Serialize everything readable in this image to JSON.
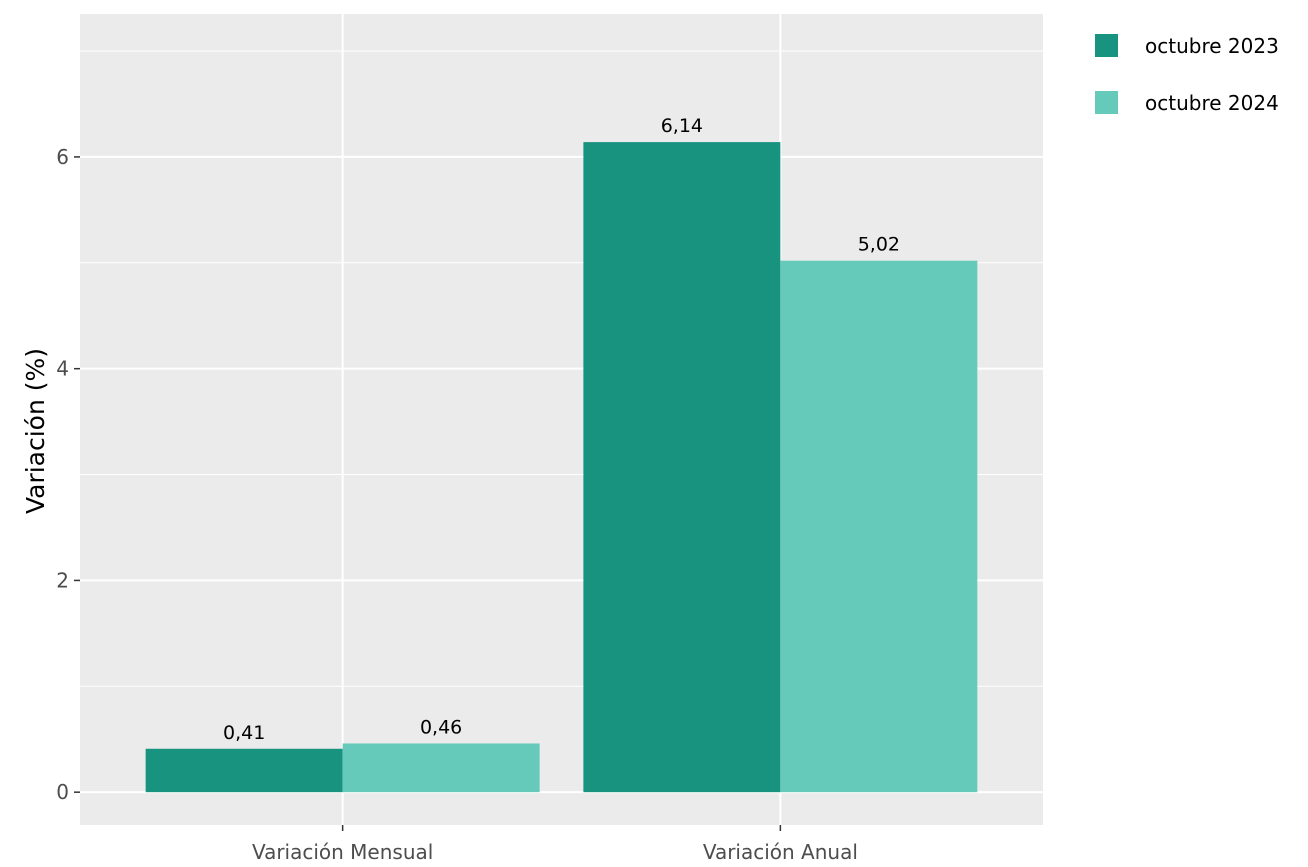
{
  "chart_data": {
    "type": "bar",
    "title": "",
    "xlabel": "",
    "ylabel": "Variación (%)",
    "categories": [
      "Variación Mensual",
      "Variación Anual"
    ],
    "series": [
      {
        "name": "octubre 2023",
        "values": [
          0.41,
          6.14
        ],
        "labels": [
          "0,41",
          "6,14"
        ],
        "color": "#17937f"
      },
      {
        "name": "octubre 2024",
        "values": [
          0.46,
          5.02
        ],
        "labels": [
          "0,46",
          "5,02"
        ],
        "color": "#66cabb"
      }
    ],
    "yticks": [
      0,
      2,
      4,
      6
    ],
    "ylim": [
      -0.31,
      7.35
    ],
    "grid": true,
    "legend_position": "right",
    "panel_color": "#ebebeb",
    "grid_color": "#ffffff"
  }
}
